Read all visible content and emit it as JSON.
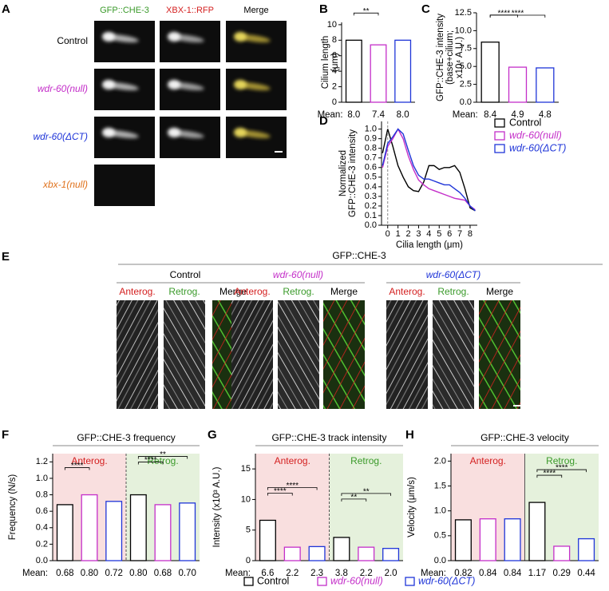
{
  "panel_a": {
    "label": "A",
    "columns": [
      "GFP::CHE-3",
      "XBX-1::RFP",
      "Merge"
    ],
    "rows": [
      "Control",
      "wdr-60(null)",
      "wdr-60(ΔCT)",
      "xbx-1(null)"
    ]
  },
  "panel_e": {
    "label": "E",
    "title": "GFP::CHE-3",
    "groups": [
      {
        "name": "Control",
        "columns": [
          "Anterog.",
          "Retrog.",
          "Merge"
        ]
      },
      {
        "name": "wdr-60(null)",
        "columns": [
          "Anterog.",
          "Retrog.",
          "Merge"
        ]
      },
      {
        "name": "wdr-60(ΔCT)",
        "columns": [
          "Anterog.",
          "Retrog.",
          "Merge"
        ]
      }
    ]
  },
  "chart_data": [
    {
      "type": "bar",
      "panel": "B",
      "ylabel": [
        "Cilium length",
        "(μm)"
      ],
      "mean_label": "Mean:",
      "values": [
        8.0,
        7.4,
        8.0
      ],
      "value_labels": [
        "8.0",
        "7.4",
        "8.0"
      ],
      "colors": [
        "#000000",
        "#c42fc9",
        "#1f35d8"
      ],
      "ylim": [
        0,
        10.3
      ],
      "yticks": [
        0,
        2,
        4,
        6,
        8,
        10
      ],
      "significance": [
        {
          "from": 0,
          "to": 1,
          "label": "**"
        }
      ]
    },
    {
      "type": "bar",
      "panel": "C",
      "ylabel": [
        "GFP::CHE-3 intensity",
        "(base+cilium;",
        "x10⁴ A.U.)"
      ],
      "mean_label": "Mean:",
      "values": [
        8.4,
        4.9,
        4.8
      ],
      "value_labels": [
        "8.4",
        "4.9",
        "4.8"
      ],
      "colors": [
        "#000000",
        "#c42fc9",
        "#1f35d8"
      ],
      "ylim": [
        0,
        12.5
      ],
      "yticks": [
        {
          "value": 0,
          "label": "0.0"
        },
        2.5,
        {
          "value": 5,
          "label": "5.0"
        },
        7.5,
        {
          "value": 10,
          "label": "10.0"
        },
        12.5
      ],
      "significance": [
        {
          "from": 0,
          "to": 1,
          "label": "****"
        },
        {
          "from": 0,
          "to": 2,
          "label": "****"
        }
      ]
    },
    {
      "type": "line",
      "panel": "D",
      "xlabel": "Cilia length (μm)",
      "ylabel": [
        "Normalized",
        "GFP::CHE-3 intensity"
      ],
      "x": [
        -0.5,
        0,
        0.5,
        1,
        1.5,
        2,
        2.5,
        3,
        3.5,
        4,
        4.5,
        5,
        5.5,
        6,
        6.5,
        7,
        7.5,
        8,
        8.5
      ],
      "series": [
        {
          "name": "Control",
          "color": "#000000",
          "values": [
            0.75,
            1.0,
            0.82,
            0.62,
            0.5,
            0.4,
            0.36,
            0.35,
            0.45,
            0.62,
            0.62,
            0.58,
            0.6,
            0.6,
            0.62,
            0.55,
            0.38,
            0.18,
            0.15
          ]
        },
        {
          "name": "wdr-60(null)",
          "color": "#c42fc9",
          "values": [
            0.6,
            0.82,
            0.9,
            1.0,
            0.9,
            0.72,
            0.58,
            0.47,
            0.42,
            0.38,
            0.36,
            0.34,
            0.32,
            0.3,
            0.28,
            0.27,
            0.26,
            0.2,
            0.16
          ]
        },
        {
          "name": "wdr-60(ΔCT)",
          "color": "#1f35d8",
          "values": [
            0.62,
            0.85,
            0.92,
            1.0,
            0.95,
            0.78,
            0.62,
            0.52,
            0.48,
            0.48,
            0.46,
            0.44,
            0.42,
            0.42,
            0.38,
            0.34,
            0.28,
            0.2,
            0.15
          ]
        }
      ],
      "xlim": [
        -0.6,
        8.7
      ],
      "xticks": [
        0,
        1,
        2,
        3,
        4,
        5,
        6,
        7,
        8
      ],
      "ylim": [
        0,
        1.08
      ],
      "yticks": [
        {
          "value": 0,
          "label": "0.0"
        },
        0.1,
        0.2,
        0.3,
        0.4,
        0.5,
        0.6,
        0.7,
        0.8,
        0.9,
        {
          "value": 1,
          "label": "1.0"
        }
      ]
    },
    {
      "type": "grouped_bar",
      "panel": "F",
      "title": "GFP::CHE-3 frequency",
      "ylabel": [
        "Frequency (N/s)"
      ],
      "mean_label": "Mean:",
      "categories": [
        "Anterog.",
        "Retrog."
      ],
      "divider": "dashed",
      "series": [
        {
          "name": "Control",
          "color": "#000000",
          "values": [
            0.68,
            0.8
          ],
          "value_labels": [
            "0.68",
            "0.80"
          ]
        },
        {
          "name": "wdr-60(null)",
          "color": "#c42fc9",
          "values": [
            0.8,
            0.68
          ],
          "value_labels": [
            "0.80",
            "0.68"
          ]
        },
        {
          "name": "wdr-60(ΔCT)",
          "color": "#1f35d8",
          "values": [
            0.72,
            0.7
          ],
          "value_labels": [
            "0.72",
            "0.70"
          ]
        }
      ],
      "ylim": [
        0,
        1.3
      ],
      "yticks": [
        {
          "value": 0,
          "label": "0.0"
        },
        0.2,
        0.4,
        0.6,
        0.8,
        {
          "value": 1,
          "label": "1.0"
        },
        1.2
      ],
      "significance": [
        {
          "from": 0,
          "to": 1,
          "label": "****"
        },
        {
          "from": 3,
          "to": 4,
          "label": "****"
        },
        {
          "from": 3,
          "to": 5,
          "label": "**"
        }
      ]
    },
    {
      "type": "grouped_bar",
      "panel": "G",
      "title": "GFP::CHE-3 track intensity",
      "ylabel": [
        "Intensity (x10³ A.U.)"
      ],
      "mean_label": "Mean:",
      "categories": [
        "Anterog.",
        "Retrog."
      ],
      "divider": "dashed",
      "series": [
        {
          "color": "#000000",
          "values": [
            6.6,
            3.8
          ],
          "value_labels": [
            "6.6",
            "3.8"
          ]
        },
        {
          "color": "#c42fc9",
          "values": [
            2.2,
            2.2
          ],
          "value_labels": [
            "2.2",
            "2.2"
          ]
        },
        {
          "color": "#1f35d8",
          "values": [
            2.3,
            2.0
          ],
          "value_labels": [
            "2.3",
            "2.0"
          ]
        }
      ],
      "ylim": [
        0,
        17.5
      ],
      "yticks": [
        0,
        5,
        10,
        15
      ],
      "significance": [
        {
          "from": 0,
          "to": 1,
          "label": "****"
        },
        {
          "from": 0,
          "to": 2,
          "label": "****"
        },
        {
          "from": 3,
          "to": 4,
          "label": "**"
        },
        {
          "from": 3,
          "to": 5,
          "label": "**"
        }
      ]
    },
    {
      "type": "grouped_bar",
      "panel": "H",
      "title": "GFP::CHE-3 velocity",
      "ylabel": [
        "Velocity (μm/s)"
      ],
      "mean_label": "Mean:",
      "categories": [
        "Anterog.",
        "Retrog."
      ],
      "divider": "solid",
      "series": [
        {
          "color": "#000000",
          "values": [
            0.82,
            1.17
          ],
          "value_labels": [
            "0.82",
            "1.17"
          ]
        },
        {
          "color": "#c42fc9",
          "values": [
            0.84,
            0.29
          ],
          "value_labels": [
            "0.84",
            "0.29"
          ]
        },
        {
          "color": "#1f35d8",
          "values": [
            0.84,
            0.44
          ],
          "value_labels": [
            "0.84",
            "0.44"
          ]
        }
      ],
      "ylim": [
        0,
        2.15
      ],
      "yticks": [
        {
          "value": 0,
          "label": "0.0"
        },
        0.5,
        {
          "value": 1,
          "label": "1.0"
        },
        1.5,
        {
          "value": 2,
          "label": "2.0"
        }
      ],
      "significance": [
        {
          "from": 3,
          "to": 4,
          "label": "****"
        },
        {
          "from": 3,
          "to": 5,
          "label": "****"
        }
      ]
    }
  ]
}
